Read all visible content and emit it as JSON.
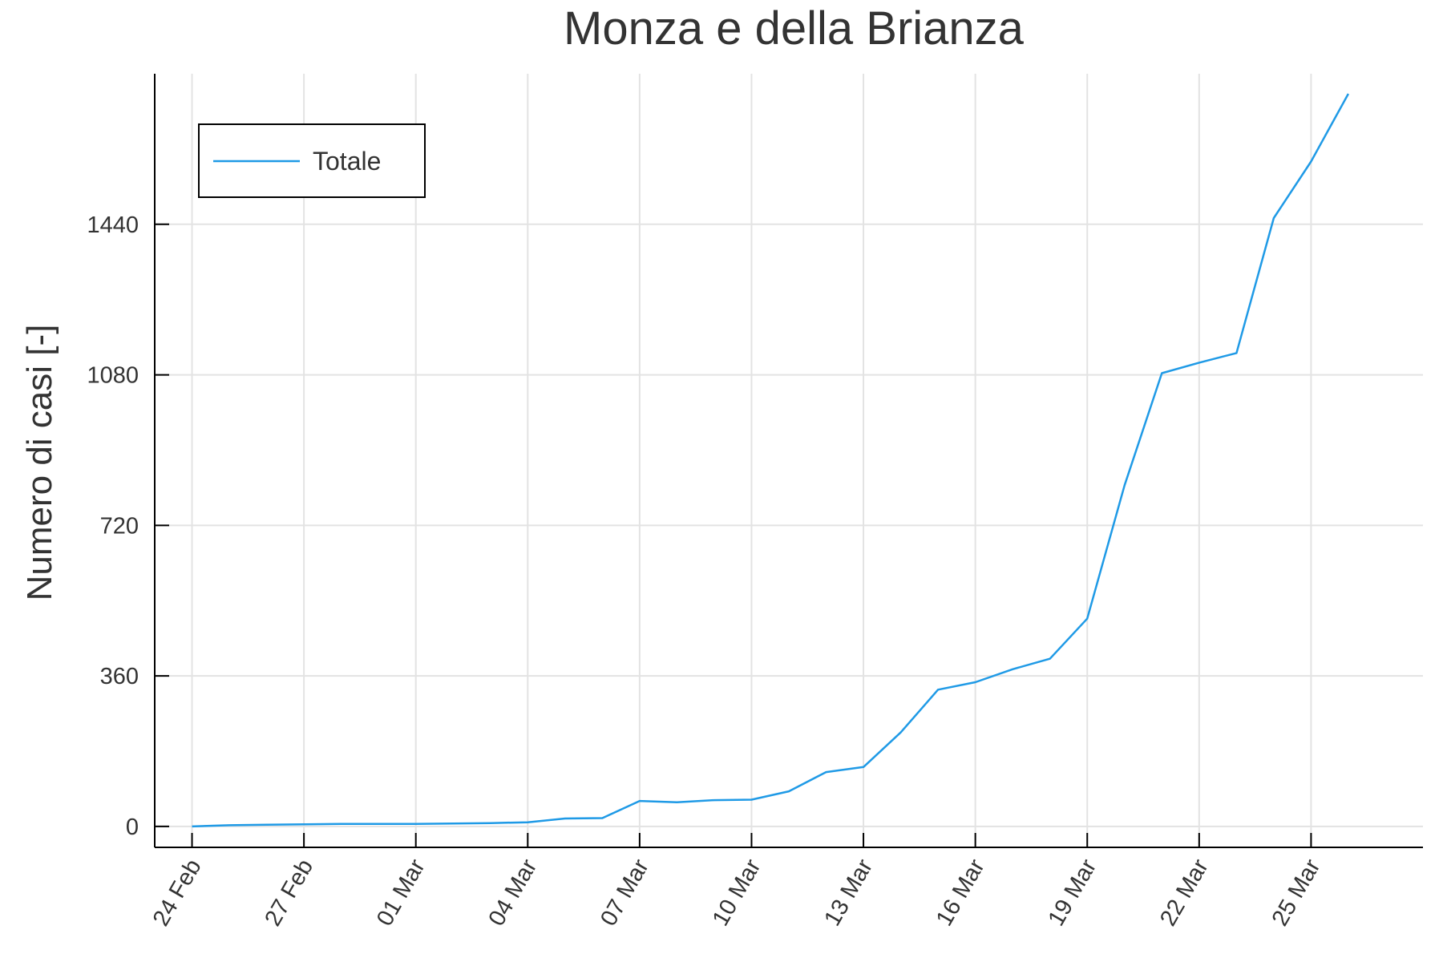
{
  "chart_data": {
    "type": "line",
    "title": "Monza e della Brianza",
    "ylabel": "Numero di casi [-]",
    "xlabel": "",
    "x_tick_labels": [
      "24 Feb",
      "27 Feb",
      "01 Mar",
      "04 Mar",
      "07 Mar",
      "10 Mar",
      "13 Mar",
      "16 Mar",
      "19 Mar",
      "22 Mar",
      "25 Mar"
    ],
    "y_ticks": [
      0,
      360,
      720,
      1080,
      1440
    ],
    "ylim": [
      -50,
      1800
    ],
    "xlim": [
      "2020-02-23",
      "2020-03-28"
    ],
    "grid": true,
    "legend_position": "top-left",
    "series": [
      {
        "name": "Totale",
        "color": "#1f9ae6",
        "x": [
          "2020-02-24",
          "2020-02-25",
          "2020-02-26",
          "2020-02-27",
          "2020-02-28",
          "2020-02-29",
          "2020-03-01",
          "2020-03-02",
          "2020-03-03",
          "2020-03-04",
          "2020-03-05",
          "2020-03-06",
          "2020-03-07",
          "2020-03-08",
          "2020-03-09",
          "2020-03-10",
          "2020-03-11",
          "2020-03-12",
          "2020-03-13",
          "2020-03-14",
          "2020-03-15",
          "2020-03-16",
          "2020-03-17",
          "2020-03-18",
          "2020-03-19",
          "2020-03-20",
          "2020-03-21",
          "2020-03-22",
          "2020-03-23",
          "2020-03-24",
          "2020-03-25",
          "2020-03-26"
        ],
        "y": [
          0,
          3,
          4,
          5,
          6,
          6,
          6,
          7,
          8,
          10,
          19,
          20,
          61,
          58,
          63,
          64,
          84,
          130,
          142,
          225,
          327,
          345,
          376,
          401,
          497,
          816,
          1084,
          1109,
          1132,
          1455,
          1590,
          1752
        ]
      }
    ]
  }
}
